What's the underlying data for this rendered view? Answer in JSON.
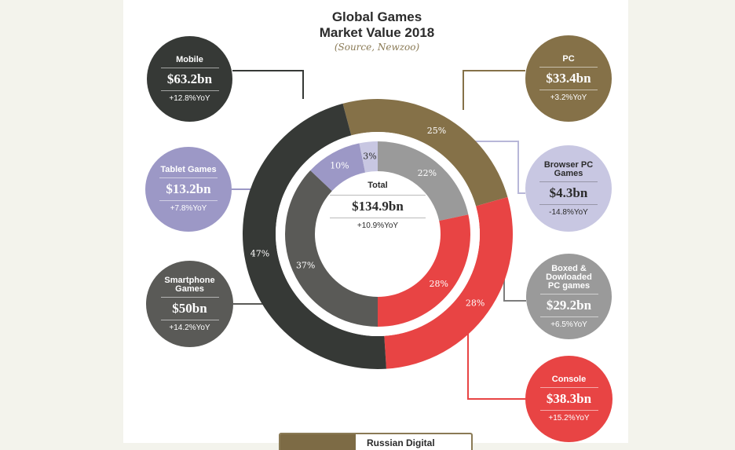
{
  "title_line1": "Global Games",
  "title_line2": "Market Value 2018",
  "source": "(Source, Newzoo)",
  "total": {
    "label": "Total",
    "value": "$134.9bn",
    "yoy": "+10.9%YoY"
  },
  "colors": {
    "mobile": "#363936",
    "pc": "#857148",
    "console": "#e84444",
    "tablet": "#9c98c6",
    "browser": "#c8c7e2",
    "boxed": "#9a9a9a",
    "smartphone": "#5a5a57"
  },
  "badges": {
    "mobile": {
      "name": "Mobile",
      "value": "$63.2bn",
      "yoy": "+12.8%YoY"
    },
    "tablet": {
      "name": "Tablet Games",
      "value": "$13.2bn",
      "yoy": "+7.8%YoY"
    },
    "smartphone": {
      "name": "Smartphone Games",
      "value": "$50bn",
      "yoy": "+14.2%YoY"
    },
    "pc": {
      "name": "PC",
      "value": "$33.4bn",
      "yoy": "+3.2%YoY"
    },
    "browser": {
      "name": "Browser PC Games",
      "value": "$4.3bn",
      "yoy": "-14.8%YoY"
    },
    "boxed": {
      "name": "Boxed & Dowloaded PC games",
      "value": "$29.2bn",
      "yoy": "+6.5%YoY"
    },
    "console": {
      "name": "Console",
      "value": "$38.3bn",
      "yoy": "+15.2%YoY"
    }
  },
  "banner_text": "Russian Digital",
  "chart_data": {
    "type": "pie",
    "title": "Global Games Market Value 2018",
    "subtitle": "(Source, Newzoo)",
    "total": 134.9,
    "outer_ring": [
      {
        "name": "PC",
        "value": 33.4,
        "percent": 25,
        "yoy": 3.2
      },
      {
        "name": "Console",
        "value": 38.3,
        "percent": 28,
        "yoy": 15.2
      },
      {
        "name": "Mobile",
        "value": 63.2,
        "percent": 47,
        "yoy": 12.8
      }
    ],
    "inner_ring": [
      {
        "name": "Boxed & Dowloaded PC games",
        "value": 29.2,
        "percent": 22,
        "yoy": 6.5
      },
      {
        "name": "Console",
        "value": 38.3,
        "percent": 28,
        "yoy": 15.2
      },
      {
        "name": "Smartphone Games",
        "value": 50,
        "percent": 37,
        "yoy": 14.2
      },
      {
        "name": "Tablet Games",
        "value": 13.2,
        "percent": 10,
        "yoy": 7.8
      },
      {
        "name": "Browser PC Games",
        "value": 4.3,
        "percent": 3,
        "yoy": -14.8
      }
    ]
  }
}
